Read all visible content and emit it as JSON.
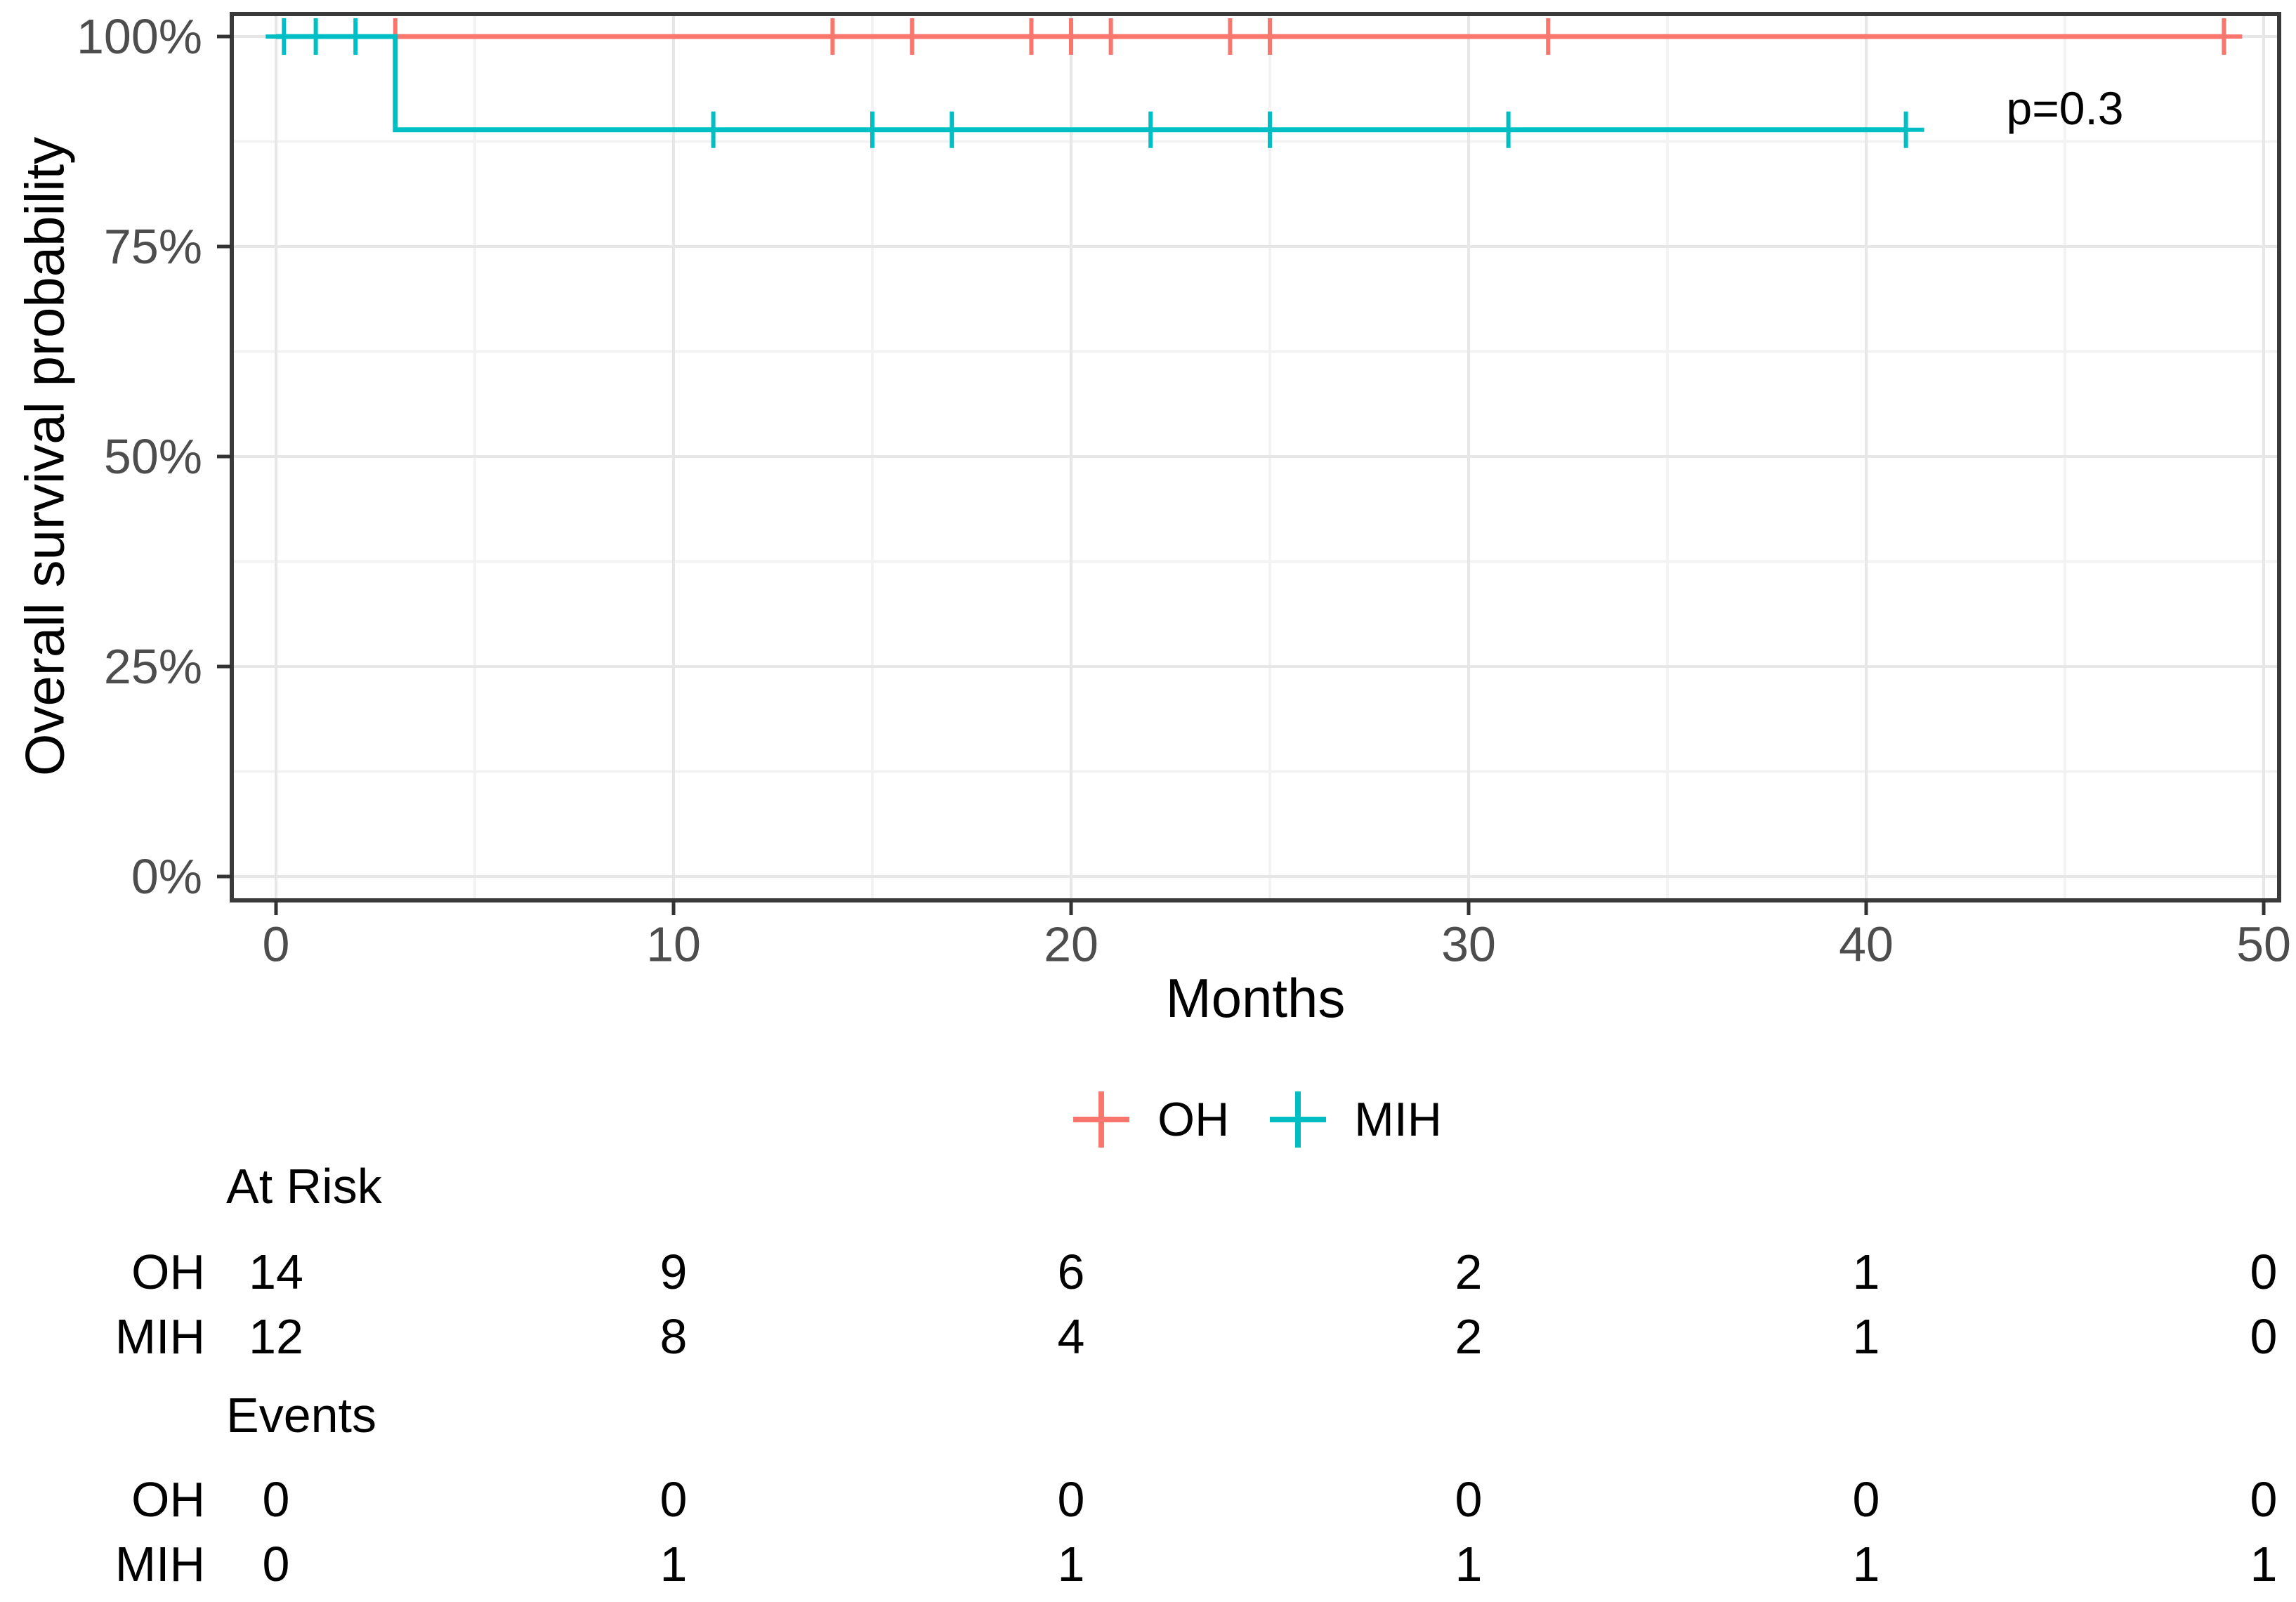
{
  "chart_data": {
    "type": "line",
    "subtype": "kaplan-meier-step",
    "title": "",
    "xlabel": "Months",
    "ylabel": "Overall survival probability",
    "x_axis": {
      "range": [
        0,
        50
      ],
      "ticks": [
        0,
        10,
        20,
        30,
        40,
        50
      ],
      "minor_ticks": [
        5,
        15,
        25,
        35,
        45
      ]
    },
    "y_axis": {
      "range_percent": [
        0,
        100
      ],
      "ticks": [
        {
          "value": 0,
          "label": "0%"
        },
        {
          "value": 25,
          "label": "25%"
        },
        {
          "value": 50,
          "label": "50%"
        },
        {
          "value": 75,
          "label": "75%"
        },
        {
          "value": 100,
          "label": "100%"
        }
      ],
      "minor_ticks": [
        12.5,
        37.5,
        62.5,
        87.5
      ]
    },
    "grid": true,
    "legend_position": "bottom-center",
    "panel_border_color": "#3a3a3a",
    "grid_major_color": "#e7e7e7",
    "grid_minor_color": "#f3f3f3",
    "axis_tick_color": "#333333",
    "tick_label_color": "#4d4d4d",
    "series": [
      {
        "name": "OH",
        "color": "#F8766D",
        "steps_percent": [
          {
            "x": 0,
            "y": 100
          },
          {
            "x": 49,
            "y": 100
          }
        ],
        "censor_marks": [
          {
            "x": 3,
            "y": 100
          },
          {
            "x": 14,
            "y": 100
          },
          {
            "x": 16,
            "y": 100
          },
          {
            "x": 19,
            "y": 100
          },
          {
            "x": 20,
            "y": 100
          },
          {
            "x": 21,
            "y": 100
          },
          {
            "x": 24,
            "y": 100
          },
          {
            "x": 25,
            "y": 100
          },
          {
            "x": 32,
            "y": 100
          },
          {
            "x": 49,
            "y": 100
          }
        ]
      },
      {
        "name": "MIH",
        "color": "#00BFC4",
        "steps_percent": [
          {
            "x": 0,
            "y": 100
          },
          {
            "x": 3,
            "y": 100
          },
          {
            "x": 3,
            "y": 88.9
          },
          {
            "x": 41,
            "y": 88.9
          }
        ],
        "censor_marks": [
          {
            "x": 0.2,
            "y": 100
          },
          {
            "x": 1,
            "y": 100
          },
          {
            "x": 2,
            "y": 100
          },
          {
            "x": 11,
            "y": 88.9
          },
          {
            "x": 15,
            "y": 88.9
          },
          {
            "x": 17,
            "y": 88.9
          },
          {
            "x": 22,
            "y": 88.9
          },
          {
            "x": 25,
            "y": 88.9
          },
          {
            "x": 31,
            "y": 88.9
          },
          {
            "x": 41,
            "y": 88.9
          }
        ]
      }
    ],
    "annotation": {
      "text": "p=0.3",
      "x_month": 45,
      "y_percent": 91.5
    }
  },
  "legend": {
    "items": [
      {
        "label": "OH",
        "color": "#F8766D"
      },
      {
        "label": "MIH",
        "color": "#00BFC4"
      }
    ]
  },
  "risk_table": {
    "columns_months": [
      0,
      10,
      20,
      30,
      40,
      50
    ],
    "sections": [
      {
        "header": "At Risk",
        "rows": [
          {
            "label": "OH",
            "values": [
              "14",
              "9",
              "6",
              "2",
              "1",
              "0"
            ]
          },
          {
            "label": "MIH",
            "values": [
              "12",
              "8",
              "4",
              "2",
              "1",
              "0"
            ]
          }
        ]
      },
      {
        "header": "Events",
        "rows": [
          {
            "label": "OH",
            "values": [
              "0",
              "0",
              "0",
              "0",
              "0",
              "0"
            ]
          },
          {
            "label": "MIH",
            "values": [
              "0",
              "1",
              "1",
              "1",
              "1",
              "1"
            ]
          }
        ]
      }
    ]
  }
}
